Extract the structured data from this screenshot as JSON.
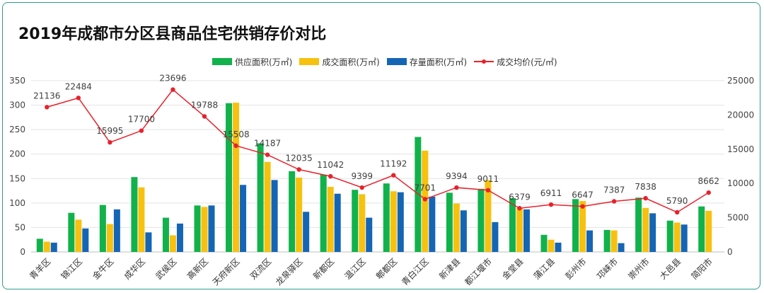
{
  "title": "2019年成都市分区县商品住宅供销存价对比",
  "colors": {
    "supply": "#11b24b",
    "transaction": "#f7c10f",
    "inventory": "#1565b5",
    "price": "#e8212b",
    "frame": "#2f9c8e"
  },
  "chart_data": {
    "type": "bar",
    "title": "2019年成都市分区县商品住宅供销存价对比",
    "categories": [
      "青羊区",
      "锦江区",
      "金牛区",
      "成华区",
      "武侯区",
      "高新区",
      "天府新区",
      "双流区",
      "龙泉驿区",
      "新都区",
      "温江区",
      "郫都区",
      "青白江区",
      "新津县",
      "都江堰市",
      "金堂县",
      "蒲江县",
      "彭州市",
      "邛崃市",
      "崇州市",
      "大邑县",
      "简阳市"
    ],
    "series": [
      {
        "name": "供应面积(万㎡)",
        "axis": "left",
        "kind": "bar",
        "values": [
          27,
          80,
          96,
          153,
          70,
          95,
          304,
          222,
          165,
          158,
          127,
          140,
          235,
          121,
          129,
          110,
          35,
          108,
          45,
          111,
          64,
          93
        ]
      },
      {
        "name": "成交面积(万㎡)",
        "axis": "left",
        "kind": "bar",
        "values": [
          21,
          66,
          57,
          132,
          34,
          92,
          305,
          184,
          152,
          133,
          118,
          124,
          207,
          99,
          147,
          90,
          25,
          104,
          44,
          90,
          60,
          84
        ]
      },
      {
        "name": "存量面积(万㎡)",
        "axis": "left",
        "kind": "bar",
        "values": [
          19,
          48,
          87,
          40,
          58,
          95,
          137,
          147,
          82,
          119,
          70,
          122,
          113,
          85,
          61,
          87,
          19,
          44,
          18,
          79,
          56,
          0
        ]
      },
      {
        "name": "成交均价(元/㎡)",
        "axis": "right",
        "kind": "line",
        "values": [
          21136,
          22484,
          15995,
          17700,
          23696,
          19788,
          15508,
          14187,
          12035,
          11042,
          9399,
          11192,
          7701,
          9394,
          9011,
          6379,
          6911,
          6647,
          7387,
          7838,
          5790,
          8662
        ],
        "labels": [
          "21136",
          "22484",
          "15995",
          "17700",
          "23696",
          "19788",
          "15508",
          "14187",
          "12035",
          "11042",
          "9399",
          "11192",
          "7701",
          "9394",
          "9011",
          "6379",
          "6911",
          "6647",
          "7387",
          "7838",
          "5790",
          "8662"
        ]
      }
    ],
    "left_axis": {
      "ylim": [
        0,
        350
      ],
      "ticks": [
        "0",
        "50",
        "100",
        "150",
        "200",
        "250",
        "300",
        "350"
      ]
    },
    "right_axis": {
      "ylim": [
        0,
        25000
      ],
      "ticks": [
        "0",
        "5000",
        "10000",
        "15000",
        "20000",
        "25000"
      ]
    },
    "legend_position": "top-center",
    "grid": true
  }
}
